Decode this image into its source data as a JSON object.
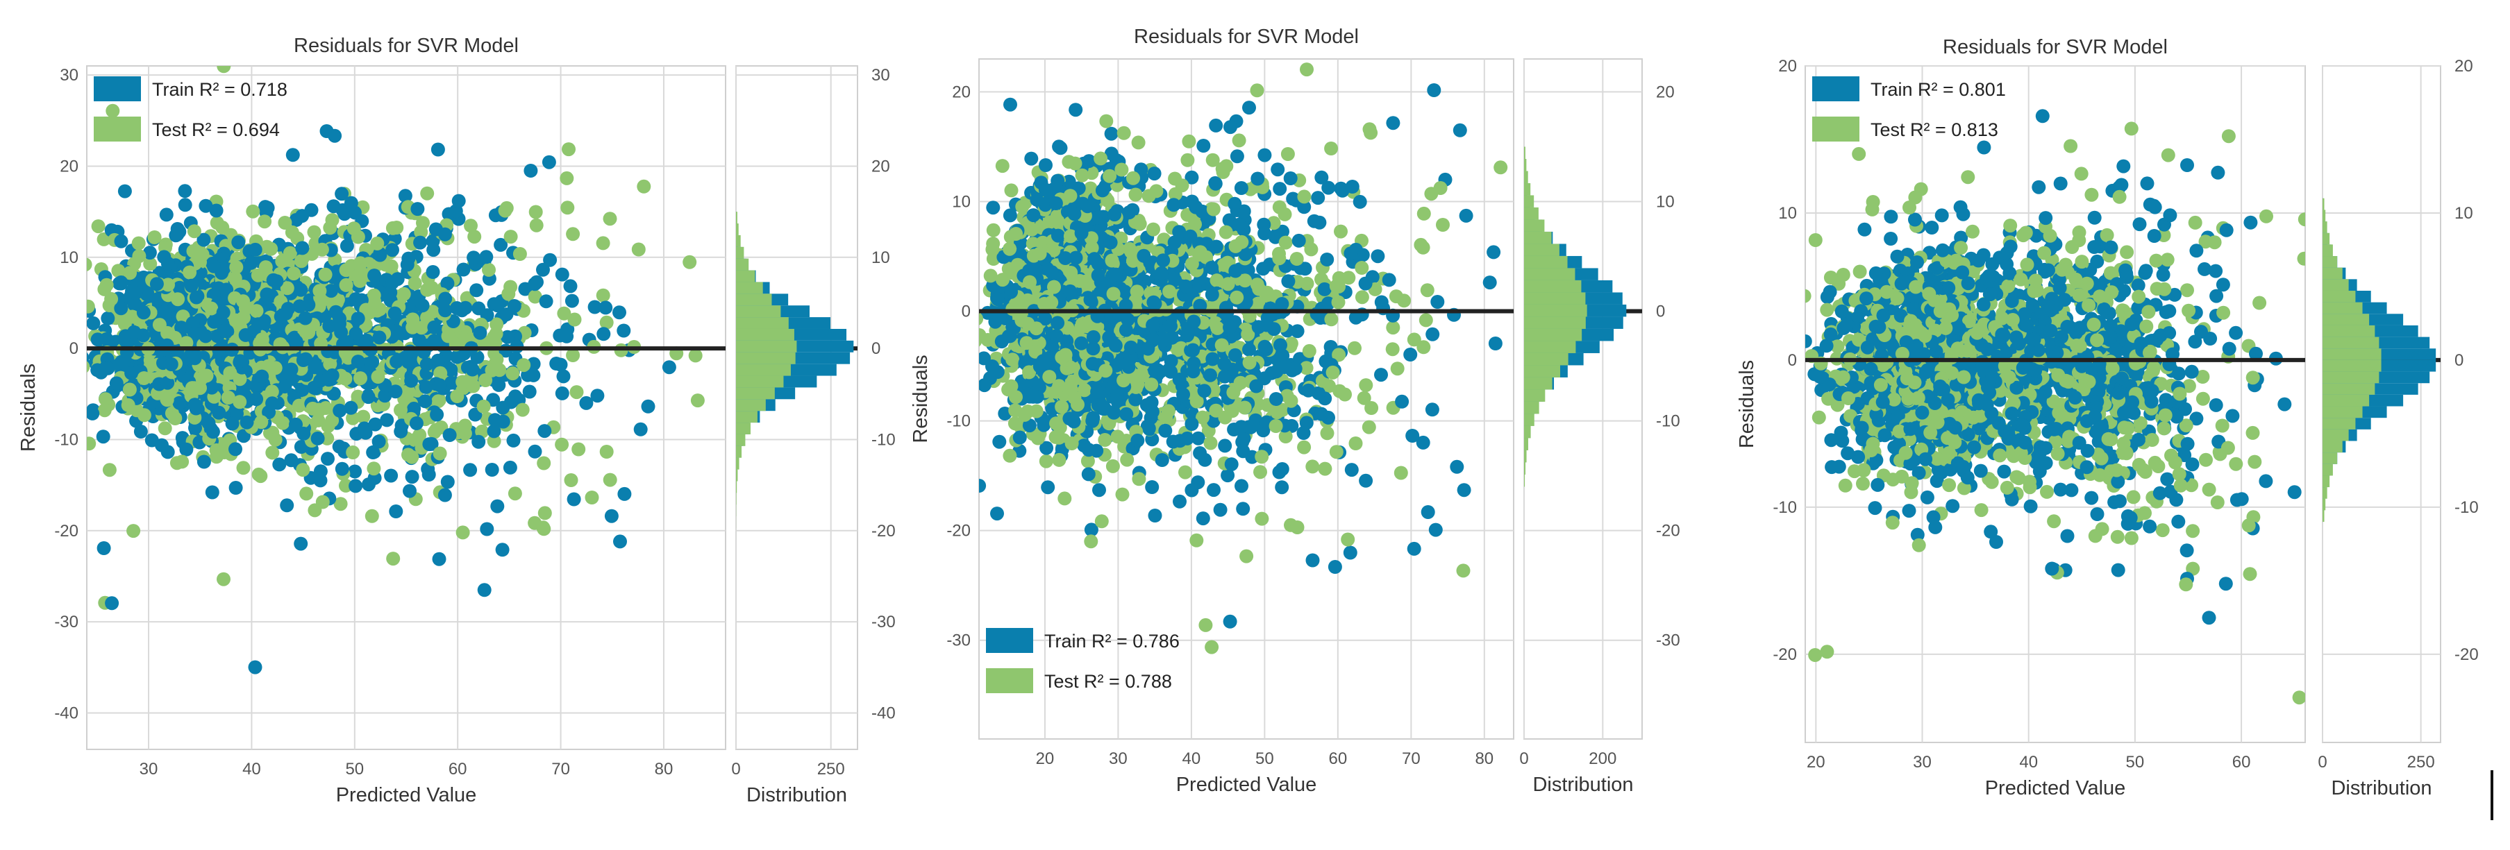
{
  "colors": {
    "train": "#0a7fae",
    "test": "#8fc66e",
    "zero_line": "#222222",
    "grid": "#d9d9d9",
    "axis_text": "#555555"
  },
  "chart_data": [
    {
      "type": "scatter",
      "title": "Residuals for SVR Model",
      "xlabel": "Predicted Value",
      "ylabel": "Residuals",
      "hist_xlabel": "Distribution",
      "xlim": [
        24,
        86
      ],
      "ylim": [
        -44,
        31
      ],
      "xticks": [
        30,
        40,
        50,
        60,
        70,
        80
      ],
      "yticks": [
        30,
        20,
        10,
        0,
        -10,
        -20,
        -30,
        -40
      ],
      "hist_xlim": [
        0,
        320
      ],
      "hist_xticks": [
        0,
        250
      ],
      "legend_position": "top-left",
      "series": [
        {
          "name": "Train",
          "r2_label": "Train R² = 0.718"
        },
        {
          "name": "Test",
          "r2_label": "Test R² = 0.694"
        }
      ],
      "clusters": [
        {
          "cx": 35,
          "cy": 1,
          "sx": 4.5,
          "sy": 5,
          "n": 1400
        },
        {
          "cx": 50,
          "cy": 1,
          "sx": 9,
          "sy": 7,
          "n": 900
        },
        {
          "cx": 60,
          "cy": -5,
          "sx": 10,
          "sy": 10,
          "n": 150
        }
      ],
      "hist": {
        "range": [
          -21,
          15
        ],
        "train_peak": 310,
        "test_peak": 160,
        "train_sd": 4.2,
        "test_sd": 5.2
      }
    },
    {
      "type": "scatter",
      "title": "Residuals for SVR Model",
      "xlabel": "Predicted Value",
      "ylabel": "Residuals",
      "hist_xlabel": "Distribution",
      "xlim": [
        11,
        84
      ],
      "ylim": [
        -39,
        23
      ],
      "xticks": [
        20,
        30,
        40,
        50,
        60,
        70,
        80
      ],
      "yticks": [
        20,
        10,
        0,
        -10,
        -20,
        -30
      ],
      "hist_xlim": [
        0,
        300
      ],
      "hist_xticks": [
        0,
        200
      ],
      "legend_position": "bottom-left",
      "series": [
        {
          "name": "Train",
          "r2_label": "Train R² = 0.786"
        },
        {
          "name": "Test",
          "r2_label": "Test R² = 0.788"
        }
      ],
      "clusters": [
        {
          "cx": 24,
          "cy": 0,
          "sx": 5,
          "sy": 5.5,
          "n": 1500
        },
        {
          "cx": 40,
          "cy": -1,
          "sx": 10,
          "sy": 7,
          "n": 800
        },
        {
          "cx": 55,
          "cy": -3,
          "sx": 9,
          "sy": 9,
          "n": 150
        }
      ],
      "hist": {
        "range": [
          -16,
          15
        ],
        "train_peak": 260,
        "test_peak": 160,
        "train_sd": 4.2,
        "test_sd": 5.2
      }
    },
    {
      "type": "scatter",
      "title": "Residuals for SVR Model",
      "xlabel": "Predicted Value",
      "ylabel": "Residuals",
      "hist_xlabel": "Distribution",
      "xlim": [
        19,
        66
      ],
      "ylim": [
        -26,
        20
      ],
      "xticks": [
        20,
        30,
        40,
        50,
        60
      ],
      "yticks": [
        20,
        10,
        0,
        -10,
        -20
      ],
      "hist_xlim": [
        0,
        300
      ],
      "hist_xticks": [
        0,
        250
      ],
      "legend_position": "top-left",
      "series": [
        {
          "name": "Train",
          "r2_label": "Train R² = 0.801"
        },
        {
          "name": "Test",
          "r2_label": "Test R² = 0.813"
        }
      ],
      "clusters": [
        {
          "cx": 30,
          "cy": -0.5,
          "sx": 4,
          "sy": 3.5,
          "n": 1400
        },
        {
          "cx": 44,
          "cy": 0,
          "sx": 6,
          "sy": 4.5,
          "n": 800
        },
        {
          "cx": 50,
          "cy": -2,
          "sx": 6,
          "sy": 7,
          "n": 150
        }
      ],
      "hist": {
        "range": [
          -11,
          11
        ],
        "train_peak": 290,
        "test_peak": 150,
        "train_sd": 3.3,
        "test_sd": 4.0
      }
    }
  ]
}
